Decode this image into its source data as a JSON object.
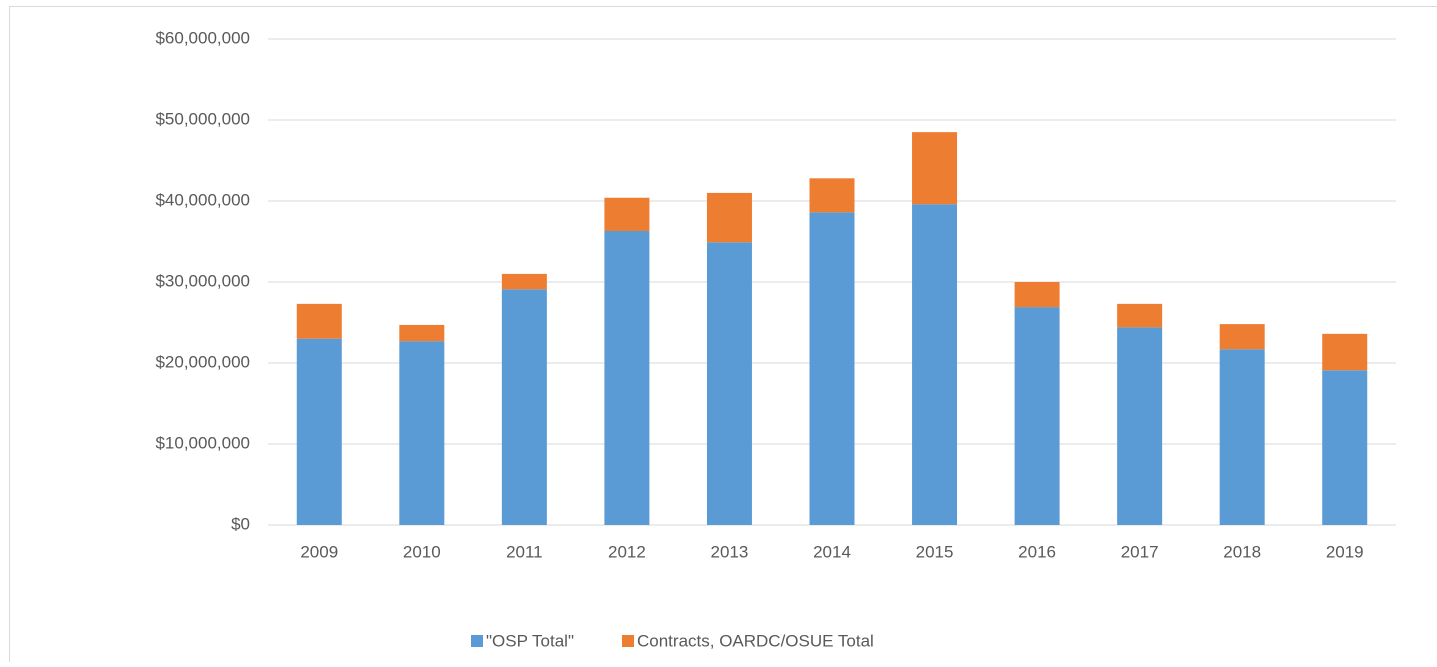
{
  "chart_data": {
    "type": "stacked_bar",
    "categories": [
      "2009",
      "2010",
      "2011",
      "2012",
      "2013",
      "2014",
      "2015",
      "2016",
      "2017",
      "2018",
      "2019"
    ],
    "series": [
      {
        "name": "\"OSP Total\"",
        "color": "#5b9bd5",
        "values": [
          23000000,
          22700000,
          29100000,
          36300000,
          34900000,
          38600000,
          39600000,
          26900000,
          24400000,
          21700000,
          19100000
        ]
      },
      {
        "name": "Contracts, OARDC/OSUE Total",
        "color": "#ed7d31",
        "values": [
          4300000,
          2000000,
          1900000,
          4100000,
          6100000,
          4200000,
          8900000,
          3100000,
          2900000,
          3100000,
          4500000
        ]
      }
    ],
    "ylim": [
      0,
      60000000
    ],
    "yticks": [
      {
        "value": 0,
        "label": "$0"
      },
      {
        "value": 10000000,
        "label": "$10,000,000"
      },
      {
        "value": 20000000,
        "label": "$20,000,000"
      },
      {
        "value": 30000000,
        "label": "$30,000,000"
      },
      {
        "value": 40000000,
        "label": "$40,000,000"
      },
      {
        "value": 50000000,
        "label": "$50,000,000"
      },
      {
        "value": 60000000,
        "label": "$60,000,000"
      }
    ],
    "grid": true,
    "legend": "bottom"
  }
}
